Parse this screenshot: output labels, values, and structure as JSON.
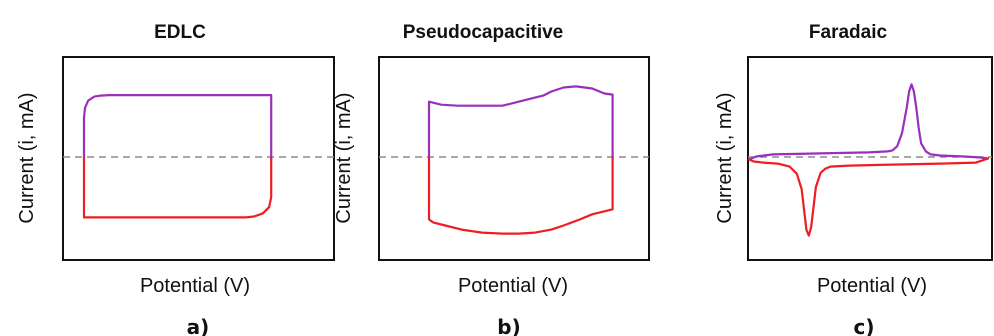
{
  "colors": {
    "oxidation": "#9b2fb8",
    "reduction": "#ee1d23",
    "zero_line": "#8c8c8c",
    "frame": "#111111"
  },
  "chart_data": [
    {
      "type": "line",
      "panel_label": "a)",
      "title": "EDLC",
      "xlabel": "Potential (V)",
      "ylabel": "Current (i, mA)",
      "xlim": [
        0,
        1
      ],
      "ylim": [
        -1,
        1
      ],
      "grid": false,
      "zero_line": true,
      "series": [
        {
          "role": "oxidation",
          "color": "#9b2fb8",
          "x": [
            0.0,
            0.0,
            0.005,
            0.02,
            0.05,
            0.08,
            0.12,
            0.5,
            0.9,
            0.9
          ],
          "y": [
            0.0,
            0.4,
            0.5,
            0.57,
            0.61,
            0.62,
            0.625,
            0.625,
            0.625,
            0.0
          ]
        },
        {
          "role": "reduction",
          "color": "#ee1d23",
          "x": [
            0.9,
            0.9,
            0.89,
            0.86,
            0.82,
            0.78,
            0.5,
            0.0,
            0.0
          ],
          "y": [
            0.0,
            -0.38,
            -0.48,
            -0.54,
            -0.57,
            -0.58,
            -0.58,
            -0.58,
            0.0
          ]
        }
      ]
    },
    {
      "type": "line",
      "panel_label": "b)",
      "title": "Pseudocapacitive",
      "xlabel": "Potential (V)",
      "ylabel": "Current (i, mA)",
      "xlim": [
        0,
        1
      ],
      "ylim": [
        -1,
        1
      ],
      "grid": false,
      "zero_line": true,
      "series": [
        {
          "role": "oxidation",
          "color": "#9b2fb8",
          "x": [
            0.0,
            0.0,
            0.06,
            0.14,
            0.26,
            0.36,
            0.42,
            0.5,
            0.56,
            0.6,
            0.66,
            0.72,
            0.8,
            0.86,
            0.9,
            0.9
          ],
          "y": [
            0.0,
            0.56,
            0.53,
            0.52,
            0.52,
            0.52,
            0.55,
            0.59,
            0.62,
            0.66,
            0.7,
            0.71,
            0.69,
            0.64,
            0.63,
            0.0
          ]
        },
        {
          "role": "reduction",
          "color": "#ee1d23",
          "x": [
            0.9,
            0.9,
            0.86,
            0.8,
            0.74,
            0.66,
            0.6,
            0.52,
            0.44,
            0.36,
            0.26,
            0.16,
            0.08,
            0.02,
            0.0,
            0.0
          ],
          "y": [
            0.0,
            -0.5,
            -0.52,
            -0.55,
            -0.6,
            -0.66,
            -0.7,
            -0.73,
            -0.74,
            -0.74,
            -0.73,
            -0.7,
            -0.66,
            -0.63,
            -0.6,
            0.0
          ]
        }
      ]
    },
    {
      "type": "line",
      "panel_label": "c)",
      "title": "Faradaic",
      "xlabel": "Potential (V)",
      "ylabel": "Current (i, mA)",
      "xlim": [
        0,
        1
      ],
      "ylim": [
        -1,
        1
      ],
      "grid": false,
      "zero_line": true,
      "series": [
        {
          "role": "oxidation",
          "color": "#9b2fb8",
          "x": [
            0.0,
            0.03,
            0.1,
            0.3,
            0.5,
            0.58,
            0.6,
            0.62,
            0.64,
            0.66,
            0.67,
            0.68,
            0.69,
            0.7,
            0.71,
            0.72,
            0.74,
            0.76,
            0.8,
            0.9,
            0.97,
            1.0
          ],
          "y": [
            -0.01,
            0.02,
            0.04,
            0.05,
            0.06,
            0.07,
            0.08,
            0.12,
            0.25,
            0.5,
            0.66,
            0.73,
            0.66,
            0.5,
            0.3,
            0.15,
            0.07,
            0.04,
            0.03,
            0.02,
            0.01,
            0.0
          ]
        },
        {
          "role": "reduction",
          "color": "#ee1d23",
          "x": [
            1.0,
            0.95,
            0.8,
            0.6,
            0.42,
            0.34,
            0.32,
            0.3,
            0.28,
            0.27,
            0.26,
            0.25,
            0.24,
            0.23,
            0.22,
            0.2,
            0.17,
            0.12,
            0.06,
            0.02,
            0.0
          ],
          "y": [
            0.0,
            -0.04,
            -0.05,
            -0.06,
            -0.07,
            -0.08,
            -0.1,
            -0.14,
            -0.28,
            -0.48,
            -0.68,
            -0.76,
            -0.7,
            -0.5,
            -0.3,
            -0.15,
            -0.08,
            -0.05,
            -0.04,
            -0.03,
            -0.01
          ]
        }
      ]
    }
  ]
}
